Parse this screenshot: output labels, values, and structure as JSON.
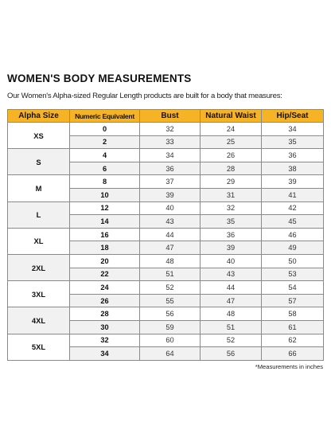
{
  "title": "WOMEN'S BODY MEASUREMENTS",
  "subtitle": "Our Women's Alpha-sized Regular Length products are built for a body that measures:",
  "headers": [
    "Alpha Size",
    "Numeric Equivalent",
    "Bust",
    "Natural Waist",
    "Hip/Seat"
  ],
  "rows": [
    {
      "alpha": "XS",
      "numeric": "0",
      "bust": "32",
      "waist": "24",
      "hip": "34"
    },
    {
      "alpha": "XS",
      "numeric": "2",
      "bust": "33",
      "waist": "25",
      "hip": "35"
    },
    {
      "alpha": "S",
      "numeric": "4",
      "bust": "34",
      "waist": "26",
      "hip": "36"
    },
    {
      "alpha": "S",
      "numeric": "6",
      "bust": "36",
      "waist": "28",
      "hip": "38"
    },
    {
      "alpha": "M",
      "numeric": "8",
      "bust": "37",
      "waist": "29",
      "hip": "39"
    },
    {
      "alpha": "M",
      "numeric": "10",
      "bust": "39",
      "waist": "31",
      "hip": "41"
    },
    {
      "alpha": "L",
      "numeric": "12",
      "bust": "40",
      "waist": "32",
      "hip": "42"
    },
    {
      "alpha": "L",
      "numeric": "14",
      "bust": "43",
      "waist": "35",
      "hip": "45"
    },
    {
      "alpha": "XL",
      "numeric": "16",
      "bust": "44",
      "waist": "36",
      "hip": "46"
    },
    {
      "alpha": "XL",
      "numeric": "18",
      "bust": "47",
      "waist": "39",
      "hip": "49"
    },
    {
      "alpha": "2XL",
      "numeric": "20",
      "bust": "48",
      "waist": "40",
      "hip": "50"
    },
    {
      "alpha": "2XL",
      "numeric": "22",
      "bust": "51",
      "waist": "43",
      "hip": "53"
    },
    {
      "alpha": "3XL",
      "numeric": "24",
      "bust": "52",
      "waist": "44",
      "hip": "54"
    },
    {
      "alpha": "3XL",
      "numeric": "26",
      "bust": "55",
      "waist": "47",
      "hip": "57"
    },
    {
      "alpha": "4XL",
      "numeric": "28",
      "bust": "56",
      "waist": "48",
      "hip": "58"
    },
    {
      "alpha": "4XL",
      "numeric": "30",
      "bust": "59",
      "waist": "51",
      "hip": "61"
    },
    {
      "alpha": "5XL",
      "numeric": "32",
      "bust": "60",
      "waist": "52",
      "hip": "62"
    },
    {
      "alpha": "5XL",
      "numeric": "34",
      "bust": "64",
      "waist": "56",
      "hip": "66"
    }
  ],
  "footnote": "*Measurements in inches",
  "colors": {
    "header_bg": "#f5b325",
    "shaded_row": "#f1f1f1",
    "border": "#8a8a8a"
  }
}
